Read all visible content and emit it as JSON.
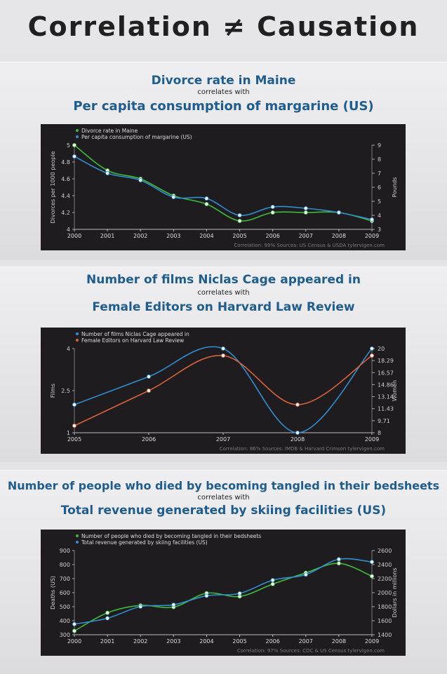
{
  "header": {
    "title": "Correlation ≠ Causation"
  },
  "colors": {
    "green": "#3fb93b",
    "blue": "#2f8fd0",
    "orange": "#d8623a",
    "title_blue": "#1f5d8f",
    "chart_bg": "#1f1c20"
  },
  "panels": [
    {
      "title_a": "Divorce rate in Maine",
      "correlates": "correlates with",
      "title_b": "Per capita consumption of margarine (US)"
    },
    {
      "title_a": "Number of films Niclas Cage appeared in",
      "correlates": "correlates with",
      "title_b": "Female Editors on Harvard Law Review"
    },
    {
      "title_a": "Number of people who died by becoming tangled in their bedsheets",
      "correlates": "correlates with",
      "title_b": "Total revenue generated by skiing facilities (US)"
    }
  ],
  "chart_data": [
    {
      "type": "line",
      "x": [
        "2000",
        "2001",
        "2002",
        "2003",
        "2004",
        "2005",
        "2006",
        "2007",
        "2008",
        "2009"
      ],
      "series": [
        {
          "name": "Divorce rate in Maine",
          "axis": "left",
          "color": "#3fb93b",
          "values": [
            5.0,
            4.7,
            4.6,
            4.4,
            4.3,
            4.1,
            4.2,
            4.2,
            4.2,
            4.1
          ]
        },
        {
          "name": "Per capita consumption of margarine (US)",
          "axis": "right",
          "color": "#2f8fd0",
          "values": [
            8.2,
            7.0,
            6.5,
            5.3,
            5.2,
            4.0,
            4.6,
            4.5,
            4.2,
            3.7
          ]
        }
      ],
      "ylabel": "Divorces per 1000 people",
      "ylabel_right": "Pounds",
      "ylim": [
        4,
        5
      ],
      "ylim_right": [
        3,
        9
      ],
      "yticks": [
        "4",
        "4.2",
        "4.4",
        "4.6",
        "4.8",
        "5"
      ],
      "yticks_right": [
        "3",
        "4",
        "5",
        "6",
        "7",
        "8",
        "9"
      ],
      "legend": "top-left",
      "footer": "Correlation: 99%   Sources: US Census & USDA   tylervigen.com"
    },
    {
      "type": "line",
      "x": [
        "2005",
        "2006",
        "2007",
        "2008",
        "2009"
      ],
      "series": [
        {
          "name": "Number of films Niclas Cage appeared in",
          "axis": "left",
          "color": "#2f8fd0",
          "values": [
            2,
            3,
            4,
            1,
            4
          ]
        },
        {
          "name": "Female Editors on Harvard Law Review",
          "axis": "right",
          "color": "#d8623a",
          "values": [
            9,
            14,
            19,
            12,
            19
          ]
        }
      ],
      "ylabel": "Films",
      "ylabel_right": "Women",
      "ylim": [
        1,
        4
      ],
      "ylim_right": [
        8,
        20
      ],
      "yticks": [
        "1",
        "2.5",
        "4"
      ],
      "yticks_right": [
        "8",
        "9.71",
        "11.43",
        "13.14",
        "14.86",
        "16.57",
        "18.29",
        "20"
      ],
      "legend": "top-left",
      "footer": "Correlation: 86%   Sources: IMDB & Harvard Crimson   tylervigen.com"
    },
    {
      "type": "line",
      "x": [
        "2000",
        "2001",
        "2002",
        "2003",
        "2004",
        "2005",
        "2006",
        "2007",
        "2008",
        "2009"
      ],
      "series": [
        {
          "name": "Number of people who died by becoming tangled in their bedsheets",
          "axis": "left",
          "color": "#3fb93b",
          "values": [
            327,
            456,
            509,
            497,
            596,
            573,
            661,
            741,
            809,
            717
          ]
        },
        {
          "name": "Total revenue generated by skiing facilities (US)",
          "axis": "right",
          "color": "#2f8fd0",
          "values": [
            1551,
            1635,
            1801,
            1827,
            1956,
            1989,
            2178,
            2257,
            2476,
            2438
          ]
        }
      ],
      "ylabel": "Deaths (US)",
      "ylabel_right": "Dollars in millions",
      "ylim": [
        300,
        900
      ],
      "ylim_right": [
        1400,
        2600
      ],
      "yticks": [
        "300",
        "400",
        "500",
        "600",
        "700",
        "800",
        "900"
      ],
      "yticks_right": [
        "1400",
        "1600",
        "1800",
        "2000",
        "2200",
        "2400",
        "2600"
      ],
      "legend": "top-left",
      "footer": "Correlation: 97%   Sources: CDC & US Census   tylervigen.com"
    }
  ]
}
